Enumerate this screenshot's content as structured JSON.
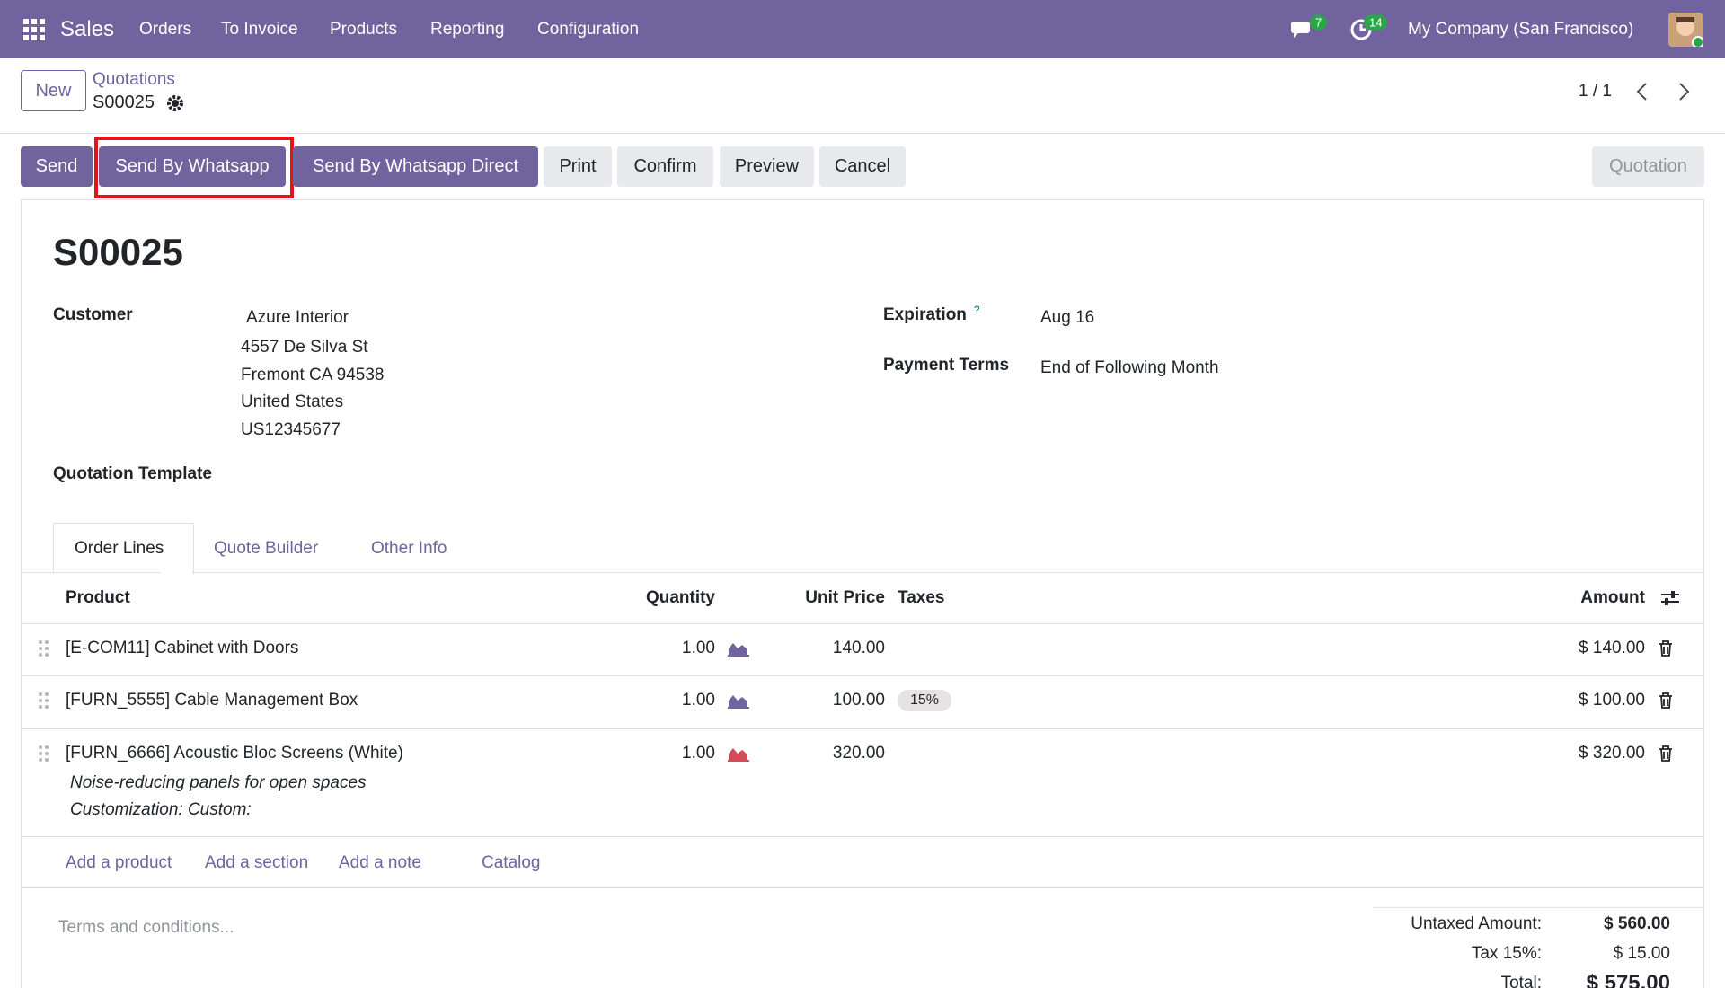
{
  "navbar": {
    "app": "Sales",
    "menu": [
      "Orders",
      "To Invoice",
      "Products",
      "Reporting",
      "Configuration"
    ],
    "messages_badge": "7",
    "activities_badge": "14",
    "company": "My Company (San Francisco)"
  },
  "control_panel": {
    "new_button": "New",
    "breadcrumb": "Quotations",
    "record": "S00025",
    "pager": "1 / 1"
  },
  "actions": {
    "buttons": [
      "Send",
      "Send By Whatsapp",
      "Send By Whatsapp Direct",
      "Print",
      "Confirm",
      "Preview",
      "Cancel"
    ],
    "status": "Quotation"
  },
  "form": {
    "name": "S00025",
    "customer_label": "Customer",
    "customer": [
      "Azure Interior",
      "4557 De Silva St",
      "Fremont CA 94538",
      "United States",
      "US12345677"
    ],
    "expiration_label": "Expiration",
    "expiration_help": "?",
    "expiration": "Aug 16",
    "payment_terms_label": "Payment Terms",
    "payment_terms": "End of Following Month",
    "template_label": "Quotation Template"
  },
  "tabs": [
    "Order Lines",
    "Quote Builder",
    "Other Info"
  ],
  "table": {
    "headers": [
      "Product",
      "Quantity",
      "Unit Price",
      "Taxes",
      "Amount"
    ],
    "rows": [
      {
        "product": "[E-COM11] Cabinet with Doors",
        "quantity": "1.00",
        "price": "140.00",
        "amount": "$ 140.00"
      },
      {
        "product": "[FURN_5555] Cable Management Box",
        "quantity": "1.00",
        "price": "100.00",
        "taxes": "15%",
        "amount": "$ 100.00"
      },
      {
        "product": "[FURN_6666] Acoustic Bloc Screens (White)",
        "quantity": "1.00",
        "price": "320.00",
        "amount": "$ 320.00",
        "description": [
          "Noise-reducing panels for open spaces",
          "Customization: Custom:"
        ]
      }
    ]
  },
  "add_links": [
    "Add a product",
    "Add a section",
    "Add a note",
    "Catalog"
  ],
  "terms_placeholder": "Terms and conditions...",
  "totals": [
    {
      "label": "Untaxed Amount:",
      "value": "$ 560.00"
    },
    {
      "label": "Tax 15%:",
      "value": "$ 15.00"
    },
    {
      "label": "Total:",
      "value": "$ 575.00"
    }
  ]
}
